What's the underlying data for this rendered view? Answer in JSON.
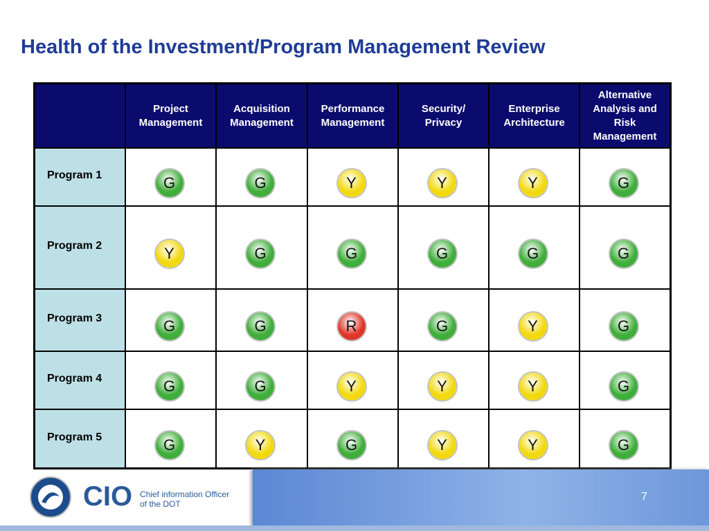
{
  "title": "Health of the Investment/Program Management Review",
  "table": {
    "columns": [
      "Project Management",
      "Acquisition Management",
      "Performance Management",
      "Security/ Privacy",
      "Enterprise Architecture",
      "Alternative Analysis and Risk Management"
    ],
    "rows": [
      {
        "name": "Program 1",
        "statuses": [
          "G",
          "G",
          "Y",
          "Y",
          "Y",
          "G"
        ]
      },
      {
        "name": "Program 2",
        "statuses": [
          "Y",
          "G",
          "G",
          "G",
          "G",
          "G"
        ]
      },
      {
        "name": "Program 3",
        "statuses": [
          "G",
          "G",
          "R",
          "G",
          "Y",
          "G"
        ]
      },
      {
        "name": "Program 4",
        "statuses": [
          "G",
          "G",
          "Y",
          "Y",
          "Y",
          "G"
        ]
      },
      {
        "name": "Program 5",
        "statuses": [
          "G",
          "Y",
          "G",
          "Y",
          "Y",
          "G"
        ]
      }
    ]
  },
  "status_colors": {
    "G": "#3fae3a",
    "Y": "#f2d90f",
    "R": "#e0362a"
  },
  "footer": {
    "logo": "CIO",
    "line1": "Chief information Officer",
    "line2": "of the DOT",
    "page": "7"
  }
}
